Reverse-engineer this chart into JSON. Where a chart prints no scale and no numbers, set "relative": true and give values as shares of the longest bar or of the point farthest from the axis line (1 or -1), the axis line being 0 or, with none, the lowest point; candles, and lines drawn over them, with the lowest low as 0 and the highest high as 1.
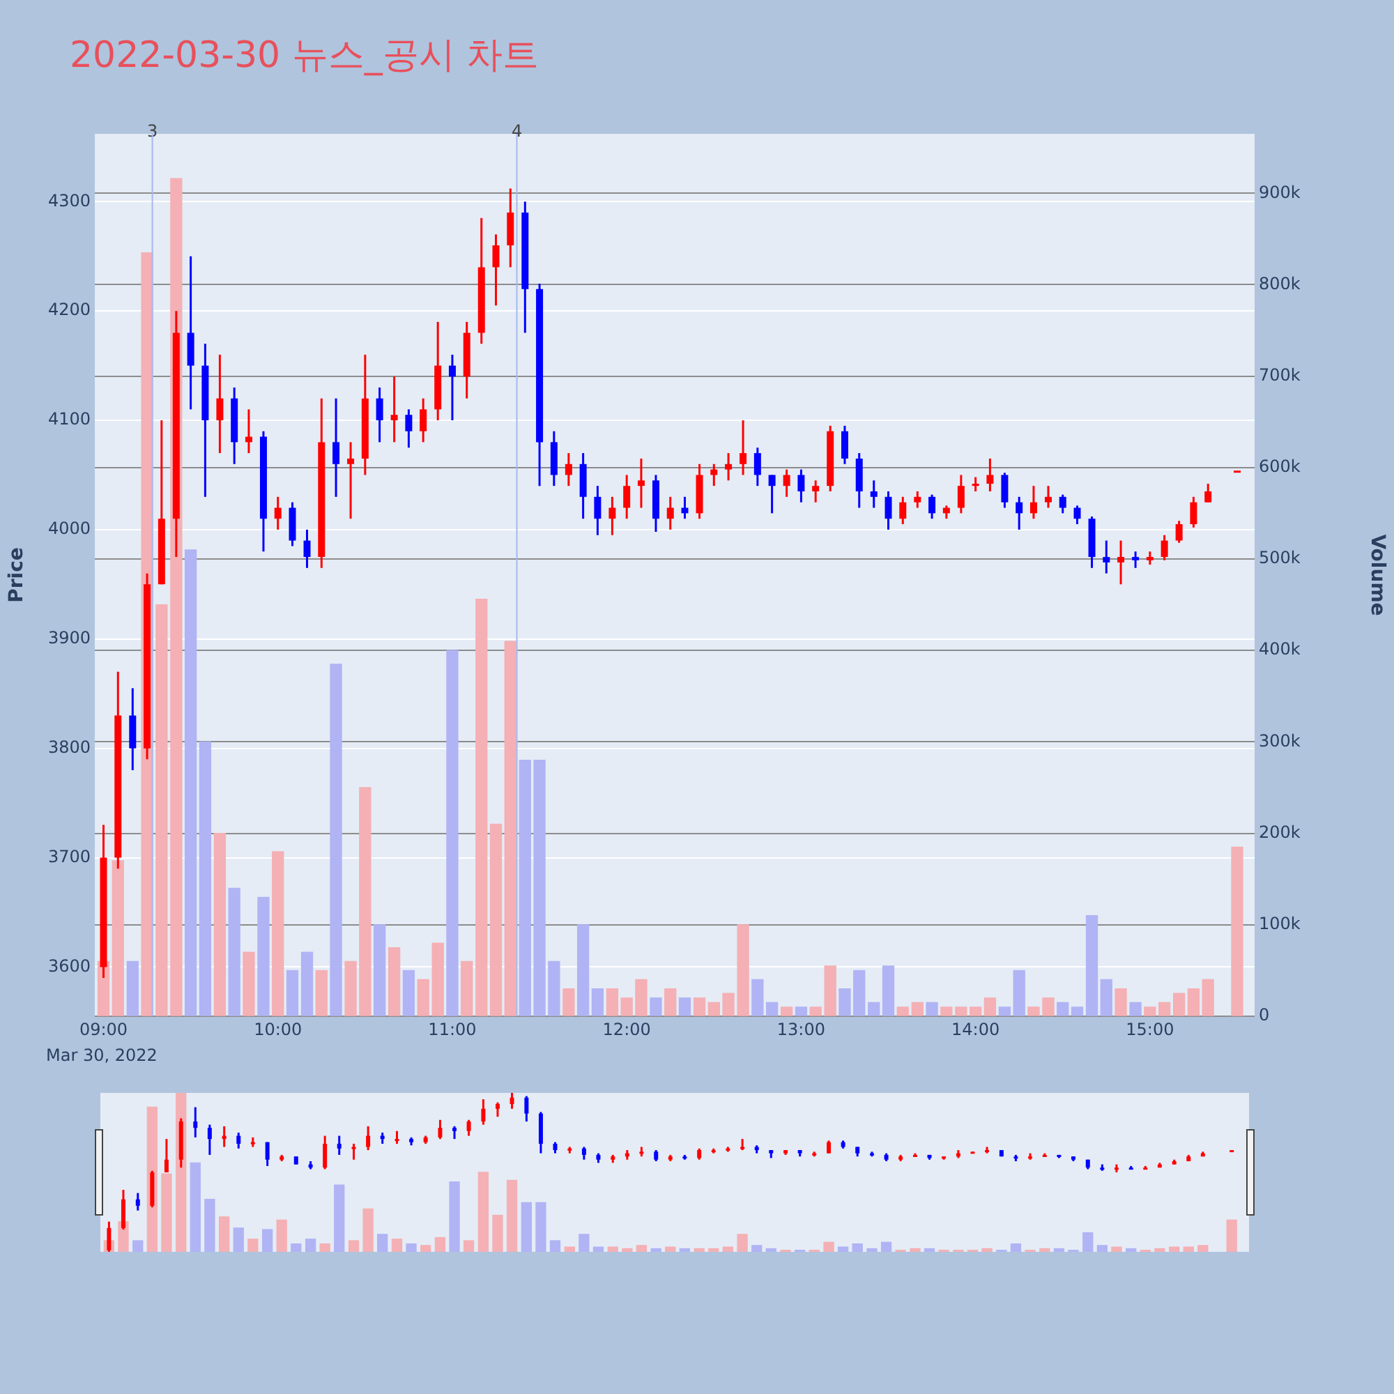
{
  "chart_data": [
    {
      "type": "candlestick",
      "title": "2022-03-30 뉴스_공시 차트",
      "ylabel": "Price",
      "y2label": "Volume",
      "annotations": [
        "Mar 30, 2022",
        {
          "text": "3",
          "x": 9.28,
          "y": 4362
        },
        {
          "text": "4",
          "x": 11.37,
          "y": 4362
        }
      ],
      "x": [
        9,
        9.083,
        9.167,
        9.25,
        9.333,
        9.417,
        9.5,
        9.583,
        9.667,
        9.75,
        9.833,
        9.917,
        10,
        10.083,
        10.167,
        10.25,
        10.333,
        10.417,
        10.5,
        10.583,
        10.667,
        10.75,
        10.833,
        10.917,
        11,
        11.083,
        11.167,
        11.25,
        11.333,
        11.417,
        11.5,
        11.583,
        11.667,
        11.75,
        11.833,
        11.917,
        12,
        12.083,
        12.167,
        12.25,
        12.333,
        12.417,
        12.5,
        12.583,
        12.667,
        12.75,
        12.833,
        12.917,
        13,
        13.083,
        13.167,
        13.25,
        13.333,
        13.417,
        13.5,
        13.583,
        13.667,
        13.75,
        13.833,
        13.917,
        14,
        14.083,
        14.167,
        14.25,
        14.333,
        14.417,
        14.5,
        14.583,
        14.667,
        14.75,
        14.833,
        14.917,
        15,
        15.083,
        15.167,
        15.25,
        15.333,
        15.5
      ],
      "ohlc": [
        [
          3600,
          3730,
          3590,
          3700
        ],
        [
          3700,
          3870,
          3690,
          3830
        ],
        [
          3830,
          3855,
          3780,
          3800
        ],
        [
          3800,
          3960,
          3790,
          3950
        ],
        [
          3950,
          4100,
          3950,
          4010
        ],
        [
          4010,
          4200,
          3975,
          4180
        ],
        [
          4180,
          4250,
          4110,
          4150
        ],
        [
          4150,
          4170,
          4030,
          4100
        ],
        [
          4100,
          4160,
          4070,
          4120
        ],
        [
          4120,
          4130,
          4060,
          4080
        ],
        [
          4080,
          4110,
          4070,
          4085
        ],
        [
          4085,
          4090,
          3980,
          4010
        ],
        [
          4010,
          4030,
          4000,
          4020
        ],
        [
          4020,
          4025,
          3985,
          3990
        ],
        [
          3990,
          4000,
          3965,
          3975
        ],
        [
          3975,
          4120,
          3965,
          4080
        ],
        [
          4080,
          4120,
          4030,
          4060
        ],
        [
          4060,
          4080,
          4010,
          4065
        ],
        [
          4065,
          4160,
          4050,
          4120
        ],
        [
          4120,
          4130,
          4080,
          4100
        ],
        [
          4100,
          4140,
          4080,
          4105
        ],
        [
          4105,
          4110,
          4075,
          4090
        ],
        [
          4090,
          4120,
          4080,
          4110
        ],
        [
          4110,
          4190,
          4100,
          4150
        ],
        [
          4150,
          4160,
          4100,
          4140
        ],
        [
          4140,
          4190,
          4120,
          4180
        ],
        [
          4180,
          4285,
          4170,
          4240
        ],
        [
          4240,
          4270,
          4205,
          4260
        ],
        [
          4260,
          4312,
          4240,
          4290
        ],
        [
          4290,
          4300,
          4180,
          4220
        ],
        [
          4220,
          4225,
          4040,
          4080
        ],
        [
          4080,
          4090,
          4040,
          4050
        ],
        [
          4050,
          4070,
          4040,
          4060
        ],
        [
          4060,
          4070,
          4010,
          4030
        ],
        [
          4030,
          4040,
          3995,
          4010
        ],
        [
          4010,
          4030,
          3995,
          4020
        ],
        [
          4020,
          4050,
          4010,
          4040
        ],
        [
          4040,
          4065,
          4020,
          4045
        ],
        [
          4045,
          4050,
          3998,
          4010
        ],
        [
          4010,
          4030,
          4000,
          4020
        ],
        [
          4020,
          4030,
          4010,
          4015
        ],
        [
          4015,
          4060,
          4010,
          4050
        ],
        [
          4050,
          4060,
          4040,
          4055
        ],
        [
          4055,
          4070,
          4045,
          4060
        ],
        [
          4060,
          4100,
          4050,
          4070
        ],
        [
          4070,
          4075,
          4040,
          4050
        ],
        [
          4050,
          4050,
          4015,
          4040
        ],
        [
          4040,
          4055,
          4030,
          4050
        ],
        [
          4050,
          4055,
          4025,
          4035
        ],
        [
          4035,
          4045,
          4025,
          4040
        ],
        [
          4040,
          4095,
          4035,
          4090
        ],
        [
          4090,
          4095,
          4060,
          4065
        ],
        [
          4065,
          4070,
          4020,
          4035
        ],
        [
          4035,
          4045,
          4020,
          4030
        ],
        [
          4030,
          4035,
          4000,
          4010
        ],
        [
          4010,
          4030,
          4005,
          4025
        ],
        [
          4025,
          4035,
          4020,
          4030
        ],
        [
          4030,
          4032,
          4010,
          4015
        ],
        [
          4015,
          4022,
          4010,
          4020
        ],
        [
          4020,
          4050,
          4015,
          4040
        ],
        [
          4040,
          4048,
          4035,
          4042
        ],
        [
          4042,
          4065,
          4035,
          4050
        ],
        [
          4050,
          4052,
          4020,
          4025
        ],
        [
          4025,
          4030,
          4000,
          4015
        ],
        [
          4015,
          4040,
          4010,
          4025
        ],
        [
          4025,
          4040,
          4020,
          4030
        ],
        [
          4030,
          4032,
          4015,
          4020
        ],
        [
          4020,
          4022,
          4005,
          4010
        ],
        [
          4010,
          4012,
          3965,
          3975
        ],
        [
          3975,
          3990,
          3960,
          3970
        ],
        [
          3970,
          3990,
          3950,
          3975
        ],
        [
          3975,
          3980,
          3965,
          3972
        ],
        [
          3972,
          3980,
          3968,
          3975
        ],
        [
          3975,
          3995,
          3972,
          3990
        ],
        [
          3990,
          4008,
          3988,
          4005
        ],
        [
          4005,
          4030,
          4002,
          4025
        ],
        [
          4025,
          4042,
          4025,
          4035
        ],
        [
          4054,
          4054,
          4054,
          4054
        ]
      ],
      "colors": [
        "#ff0000",
        "#ff0000",
        "#0000ff",
        "#ff0000",
        "#ff0000",
        "#ff0000",
        "#0000ff",
        "#0000ff",
        "#ff0000",
        "#0000ff",
        "#ff0000",
        "#0000ff",
        "#ff0000",
        "#0000ff",
        "#0000ff",
        "#ff0000",
        "#0000ff",
        "#ff0000",
        "#ff0000",
        "#0000ff",
        "#ff0000",
        "#0000ff",
        "#ff0000",
        "#ff0000",
        "#0000ff",
        "#ff0000",
        "#ff0000",
        "#ff0000",
        "#ff0000",
        "#0000ff",
        "#0000ff",
        "#0000ff",
        "#ff0000",
        "#0000ff",
        "#0000ff",
        "#ff0000",
        "#ff0000",
        "#ff0000",
        "#0000ff",
        "#ff0000",
        "#0000ff",
        "#ff0000",
        "#ff0000",
        "#ff0000",
        "#ff0000",
        "#0000ff",
        "#0000ff",
        "#ff0000",
        "#0000ff",
        "#ff0000",
        "#ff0000",
        "#0000ff",
        "#0000ff",
        "#0000ff",
        "#0000ff",
        "#ff0000",
        "#ff0000",
        "#0000ff",
        "#ff0000",
        "#ff0000",
        "#ff0000",
        "#ff0000",
        "#0000ff",
        "#0000ff",
        "#ff0000",
        "#ff0000",
        "#0000ff",
        "#0000ff",
        "#0000ff",
        "#0000ff",
        "#ff0000",
        "#0000ff",
        "#ff0000",
        "#ff0000",
        "#ff0000",
        "#ff0000",
        "#ff0000",
        "#ff0000"
      ],
      "series": [
        {
          "type": "bar",
          "axis": "y2",
          "values": [
            60000,
            170000,
            60000,
            835000,
            450000,
            916000,
            510000,
            300000,
            200000,
            140000,
            70000,
            130000,
            180000,
            50000,
            70000,
            50000,
            385000,
            60000,
            250000,
            100000,
            75000,
            50000,
            40000,
            80000,
            400000,
            60000,
            456000,
            210000,
            410000,
            280000,
            280000,
            60000,
            30000,
            100000,
            30000,
            30000,
            20000,
            40000,
            20000,
            30000,
            20000,
            20000,
            15000,
            25000,
            100000,
            40000,
            15000,
            10000,
            10000,
            10000,
            55000,
            30000,
            50000,
            15000,
            55000,
            10000,
            15000,
            15000,
            10000,
            10000,
            10000,
            20000,
            10000,
            50000,
            10000,
            20000,
            15000,
            10000,
            110000,
            40000,
            30000,
            15000,
            10000,
            15000,
            25000,
            30000,
            40000,
            185000
          ],
          "colors": [
            "#f4b0b4",
            "#f4b0b4",
            "#b0b4f4",
            "#f4b0b4",
            "#f4b0b4",
            "#f4b0b4",
            "#b0b4f4",
            "#b0b4f4",
            "#f4b0b4",
            "#b0b4f4",
            "#f4b0b4",
            "#b0b4f4",
            "#f4b0b4",
            "#b0b4f4",
            "#b0b4f4",
            "#f4b0b4",
            "#b0b4f4",
            "#f4b0b4",
            "#f4b0b4",
            "#b0b4f4",
            "#f4b0b4",
            "#b0b4f4",
            "#f4b0b4",
            "#f4b0b4",
            "#b0b4f4",
            "#f4b0b4",
            "#f4b0b4",
            "#f4b0b4",
            "#f4b0b4",
            "#b0b4f4",
            "#b0b4f4",
            "#b0b4f4",
            "#f4b0b4",
            "#b0b4f4",
            "#b0b4f4",
            "#f4b0b4",
            "#f4b0b4",
            "#f4b0b4",
            "#b0b4f4",
            "#f4b0b4",
            "#b0b4f4",
            "#f4b0b4",
            "#f4b0b4",
            "#f4b0b4",
            "#f4b0b4",
            "#b0b4f4",
            "#b0b4f4",
            "#f4b0b4",
            "#b0b4f4",
            "#f4b0b4",
            "#f4b0b4",
            "#b0b4f4",
            "#b0b4f4",
            "#b0b4f4",
            "#b0b4f4",
            "#f4b0b4",
            "#f4b0b4",
            "#b0b4f4",
            "#f4b0b4",
            "#f4b0b4",
            "#f4b0b4",
            "#f4b0b4",
            "#b0b4f4",
            "#b0b4f4",
            "#f4b0b4",
            "#f4b0b4",
            "#b0b4f4",
            "#b0b4f4",
            "#b0b4f4",
            "#b0b4f4",
            "#f4b0b4",
            "#b0b4f4",
            "#f4b0b4",
            "#f4b0b4",
            "#f4b0b4",
            "#f4b0b4",
            "#f4b0b4",
            "#f4b0b4"
          ]
        }
      ],
      "xlim": [
        8.95,
        15.6
      ],
      "xticks": [
        {
          "value": 9,
          "label": "09:00"
        },
        {
          "value": 10,
          "label": "10:00"
        },
        {
          "value": 11,
          "label": "11:00"
        },
        {
          "value": 12,
          "label": "12:00"
        },
        {
          "value": 13,
          "label": "13:00"
        },
        {
          "value": 14,
          "label": "14:00"
        },
        {
          "value": 15,
          "label": "15:00"
        }
      ],
      "ylim": [
        3555,
        4362
      ],
      "yticks": [
        3600,
        3700,
        3800,
        3900,
        4000,
        4100,
        4200,
        4300
      ],
      "y2lim": [
        0,
        965000
      ],
      "y2ticks": [
        0,
        {
          "value": 100000,
          "label": "100k"
        },
        {
          "value": 200000,
          "label": "200k"
        },
        {
          "value": 300000,
          "label": "300k"
        },
        {
          "value": 400000,
          "label": "400k"
        },
        {
          "value": 500000,
          "label": "500k"
        },
        {
          "value": 600000,
          "label": "600k"
        },
        {
          "value": 700000,
          "label": "700k"
        },
        {
          "value": 800000,
          "label": "800k"
        },
        {
          "value": 900000,
          "label": "900k"
        }
      ],
      "ref_lines": [
        {
          "axis": "x",
          "value": 9.28,
          "color": "#a8b8f0"
        },
        {
          "axis": "x",
          "value": 11.37,
          "color": "#a8b8f0"
        }
      ],
      "grid": "y",
      "legend": false
    },
    {
      "type": "candlestick",
      "legend": false,
      "relative": true,
      "x": [
        9,
        9.083,
        9.167,
        9.25,
        9.333,
        9.417,
        9.5,
        9.583,
        9.667,
        9.75,
        9.833,
        9.917,
        10,
        10.083,
        10.167,
        10.25,
        10.333,
        10.417,
        10.5,
        10.583,
        10.667,
        10.75,
        10.833,
        10.917,
        11,
        11.083,
        11.167,
        11.25,
        11.333,
        11.417,
        11.5,
        11.583,
        11.667,
        11.75,
        11.833,
        11.917,
        12,
        12.083,
        12.167,
        12.25,
        12.333,
        12.417,
        12.5,
        12.583,
        12.667,
        12.75,
        12.833,
        12.917,
        13,
        13.083,
        13.167,
        13.25,
        13.333,
        13.417,
        13.5,
        13.583,
        13.667,
        13.75,
        13.833,
        13.917,
        14,
        14.083,
        14.167,
        14.25,
        14.333,
        14.417,
        14.5,
        14.583,
        14.667,
        14.75,
        14.833,
        14.917,
        15,
        15.083,
        15.167,
        15.25,
        15.333,
        15.5
      ],
      "ohlc": [
        [
          0.01,
          0.19,
          0,
          0.15
        ],
        [
          0.15,
          0.39,
          0.14,
          0.33
        ],
        [
          0.33,
          0.37,
          0.26,
          0.29
        ],
        [
          0.29,
          0.51,
          0.28,
          0.5
        ],
        [
          0.5,
          0.71,
          0.5,
          0.58
        ],
        [
          0.58,
          0.84,
          0.53,
          0.82
        ],
        [
          0.82,
          0.91,
          0.72,
          0.78
        ],
        [
          0.78,
          0.8,
          0.61,
          0.71
        ],
        [
          0.71,
          0.79,
          0.66,
          0.73
        ],
        [
          0.73,
          0.75,
          0.65,
          0.68
        ],
        [
          0.68,
          0.72,
          0.66,
          0.69
        ],
        [
          0.69,
          0.69,
          0.54,
          0.58
        ],
        [
          0.58,
          0.61,
          0.57,
          0.6
        ],
        [
          0.6,
          0.6,
          0.55,
          0.55
        ],
        [
          0.55,
          0.57,
          0.52,
          0.53
        ],
        [
          0.53,
          0.73,
          0.52,
          0.68
        ],
        [
          0.68,
          0.73,
          0.61,
          0.65
        ],
        [
          0.65,
          0.68,
          0.58,
          0.66
        ],
        [
          0.66,
          0.79,
          0.64,
          0.73
        ],
        [
          0.73,
          0.75,
          0.68,
          0.71
        ],
        [
          0.71,
          0.76,
          0.68,
          0.71
        ],
        [
          0.71,
          0.72,
          0.67,
          0.69
        ],
        [
          0.69,
          0.73,
          0.68,
          0.72
        ],
        [
          0.72,
          0.83,
          0.71,
          0.78
        ],
        [
          0.78,
          0.79,
          0.71,
          0.76
        ],
        [
          0.76,
          0.83,
          0.73,
          0.82
        ],
        [
          0.82,
          0.96,
          0.8,
          0.9
        ],
        [
          0.9,
          0.94,
          0.85,
          0.93
        ],
        [
          0.93,
          1,
          0.9,
          0.97
        ],
        [
          0.97,
          0.98,
          0.82,
          0.87
        ],
        [
          0.87,
          0.88,
          0.62,
          0.68
        ],
        [
          0.68,
          0.69,
          0.62,
          0.64
        ],
        [
          0.64,
          0.66,
          0.62,
          0.65
        ],
        [
          0.65,
          0.66,
          0.58,
          0.61
        ],
        [
          0.61,
          0.62,
          0.56,
          0.58
        ],
        [
          0.58,
          0.61,
          0.56,
          0.6
        ],
        [
          0.6,
          0.64,
          0.58,
          0.62
        ],
        [
          0.62,
          0.66,
          0.6,
          0.63
        ],
        [
          0.63,
          0.64,
          0.57,
          0.58
        ],
        [
          0.58,
          0.61,
          0.57,
          0.6
        ],
        [
          0.6,
          0.61,
          0.58,
          0.59
        ],
        [
          0.59,
          0.65,
          0.58,
          0.64
        ],
        [
          0.64,
          0.65,
          0.62,
          0.64
        ],
        [
          0.64,
          0.66,
          0.63,
          0.65
        ],
        [
          0.65,
          0.71,
          0.64,
          0.66
        ],
        [
          0.66,
          0.67,
          0.62,
          0.64
        ],
        [
          0.64,
          0.64,
          0.59,
          0.62
        ],
        [
          0.62,
          0.64,
          0.61,
          0.64
        ],
        [
          0.64,
          0.64,
          0.6,
          0.62
        ],
        [
          0.62,
          0.63,
          0.6,
          0.62
        ],
        [
          0.62,
          0.7,
          0.62,
          0.69
        ],
        [
          0.69,
          0.7,
          0.65,
          0.66
        ],
        [
          0.66,
          0.66,
          0.6,
          0.62
        ],
        [
          0.62,
          0.63,
          0.6,
          0.61
        ],
        [
          0.61,
          0.62,
          0.57,
          0.58
        ],
        [
          0.58,
          0.61,
          0.57,
          0.6
        ],
        [
          0.6,
          0.62,
          0.6,
          0.61
        ],
        [
          0.61,
          0.61,
          0.58,
          0.59
        ],
        [
          0.59,
          0.6,
          0.58,
          0.6
        ],
        [
          0.6,
          0.64,
          0.59,
          0.62
        ],
        [
          0.62,
          0.63,
          0.62,
          0.63
        ],
        [
          0.63,
          0.66,
          0.62,
          0.64
        ],
        [
          0.64,
          0.64,
          0.6,
          0.6
        ],
        [
          0.6,
          0.61,
          0.57,
          0.59
        ],
        [
          0.59,
          0.62,
          0.58,
          0.6
        ],
        [
          0.6,
          0.62,
          0.6,
          0.61
        ],
        [
          0.61,
          0.61,
          0.59,
          0.6
        ],
        [
          0.6,
          0.6,
          0.57,
          0.58
        ],
        [
          0.58,
          0.58,
          0.52,
          0.53
        ],
        [
          0.53,
          0.55,
          0.51,
          0.53
        ],
        [
          0.53,
          0.55,
          0.5,
          0.53
        ],
        [
          0.53,
          0.54,
          0.52,
          0.53
        ],
        [
          0.53,
          0.54,
          0.52,
          0.53
        ],
        [
          0.53,
          0.56,
          0.53,
          0.55
        ],
        [
          0.55,
          0.58,
          0.55,
          0.57
        ],
        [
          0.57,
          0.61,
          0.57,
          0.6
        ],
        [
          0.6,
          0.63,
          0.6,
          0.62
        ],
        [
          0.64,
          0.64,
          0.64,
          0.64
        ]
      ],
      "colors": [
        "#ff0000",
        "#ff0000",
        "#0000ff",
        "#ff0000",
        "#ff0000",
        "#ff0000",
        "#0000ff",
        "#0000ff",
        "#ff0000",
        "#0000ff",
        "#ff0000",
        "#0000ff",
        "#ff0000",
        "#0000ff",
        "#0000ff",
        "#ff0000",
        "#0000ff",
        "#ff0000",
        "#ff0000",
        "#0000ff",
        "#ff0000",
        "#0000ff",
        "#ff0000",
        "#ff0000",
        "#0000ff",
        "#ff0000",
        "#ff0000",
        "#ff0000",
        "#ff0000",
        "#0000ff",
        "#0000ff",
        "#0000ff",
        "#ff0000",
        "#0000ff",
        "#0000ff",
        "#ff0000",
        "#ff0000",
        "#ff0000",
        "#0000ff",
        "#ff0000",
        "#0000ff",
        "#ff0000",
        "#ff0000",
        "#ff0000",
        "#ff0000",
        "#0000ff",
        "#0000ff",
        "#ff0000",
        "#0000ff",
        "#ff0000",
        "#ff0000",
        "#0000ff",
        "#0000ff",
        "#0000ff",
        "#0000ff",
        "#ff0000",
        "#ff0000",
        "#0000ff",
        "#ff0000",
        "#ff0000",
        "#ff0000",
        "#ff0000",
        "#0000ff",
        "#0000ff",
        "#ff0000",
        "#ff0000",
        "#0000ff",
        "#0000ff",
        "#0000ff",
        "#0000ff",
        "#ff0000",
        "#0000ff",
        "#ff0000",
        "#ff0000",
        "#ff0000",
        "#ff0000",
        "#ff0000",
        "#ff0000"
      ],
      "series": [
        {
          "type": "bar",
          "axis": "y2",
          "values": [
            0.07,
            0.19,
            0.07,
            0.91,
            0.49,
            1,
            0.56,
            0.33,
            0.22,
            0.15,
            0.08,
            0.14,
            0.2,
            0.05,
            0.08,
            0.05,
            0.42,
            0.07,
            0.27,
            0.11,
            0.08,
            0.05,
            0.04,
            0.09,
            0.44,
            0.07,
            0.5,
            0.23,
            0.45,
            0.31,
            0.31,
            0.07,
            0.03,
            0.11,
            0.03,
            0.03,
            0.02,
            0.04,
            0.02,
            0.03,
            0.02,
            0.02,
            0.02,
            0.03,
            0.11,
            0.04,
            0.02,
            0.01,
            0.01,
            0.01,
            0.06,
            0.03,
            0.05,
            0.02,
            0.06,
            0.01,
            0.02,
            0.02,
            0.01,
            0.01,
            0.01,
            0.02,
            0.01,
            0.05,
            0.01,
            0.02,
            0.02,
            0.01,
            0.12,
            0.04,
            0.03,
            0.02,
            0.01,
            0.02,
            0.03,
            0.03,
            0.04,
            0.2
          ],
          "colors": [
            "#f4b0b4",
            "#f4b0b4",
            "#b0b4f4",
            "#f4b0b4",
            "#f4b0b4",
            "#f4b0b4",
            "#b0b4f4",
            "#b0b4f4",
            "#f4b0b4",
            "#b0b4f4",
            "#f4b0b4",
            "#b0b4f4",
            "#f4b0b4",
            "#b0b4f4",
            "#b0b4f4",
            "#f4b0b4",
            "#b0b4f4",
            "#f4b0b4",
            "#f4b0b4",
            "#b0b4f4",
            "#f4b0b4",
            "#b0b4f4",
            "#f4b0b4",
            "#f4b0b4",
            "#b0b4f4",
            "#f4b0b4",
            "#f4b0b4",
            "#f4b0b4",
            "#f4b0b4",
            "#b0b4f4",
            "#b0b4f4",
            "#b0b4f4",
            "#f4b0b4",
            "#b0b4f4",
            "#b0b4f4",
            "#f4b0b4",
            "#f4b0b4",
            "#f4b0b4",
            "#b0b4f4",
            "#f4b0b4",
            "#b0b4f4",
            "#f4b0b4",
            "#f4b0b4",
            "#f4b0b4",
            "#f4b0b4",
            "#b0b4f4",
            "#b0b4f4",
            "#f4b0b4",
            "#b0b4f4",
            "#f4b0b4",
            "#f4b0b4",
            "#b0b4f4",
            "#b0b4f4",
            "#b0b4f4",
            "#b0b4f4",
            "#f4b0b4",
            "#f4b0b4",
            "#b0b4f4",
            "#f4b0b4",
            "#f4b0b4",
            "#f4b0b4",
            "#f4b0b4",
            "#b0b4f4",
            "#b0b4f4",
            "#f4b0b4",
            "#f4b0b4",
            "#b0b4f4",
            "#b0b4f4",
            "#b0b4f4",
            "#b0b4f4",
            "#f4b0b4",
            "#b0b4f4",
            "#f4b0b4",
            "#f4b0b4",
            "#f4b0b4",
            "#f4b0b4",
            "#f4b0b4",
            "#f4b0b4"
          ]
        }
      ],
      "xlim": [
        8.95,
        15.6
      ]
    }
  ]
}
